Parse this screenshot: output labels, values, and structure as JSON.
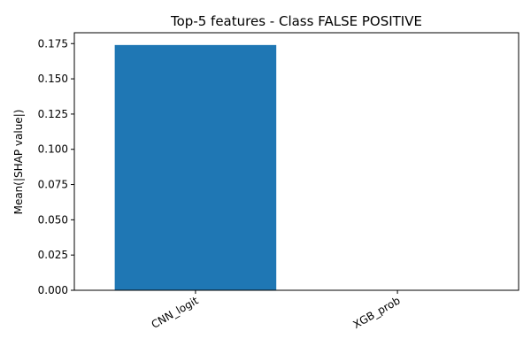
{
  "chart_data": {
    "type": "bar",
    "title": "Top-5 features - Class FALSE POSITIVE",
    "xlabel": "",
    "ylabel": "Mean(|SHAP value|)",
    "categories": [
      "CNN_logit",
      "XGB_prob"
    ],
    "values": [
      0.174,
      0.0
    ],
    "ylim": [
      0,
      0.1827
    ],
    "yticks": [
      "0.000",
      "0.025",
      "0.050",
      "0.075",
      "0.100",
      "0.125",
      "0.150",
      "0.175"
    ],
    "bar_color": "#1f77b4",
    "grid": false,
    "legend": "none"
  }
}
